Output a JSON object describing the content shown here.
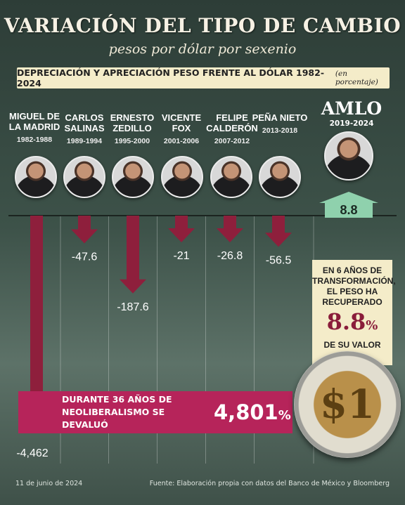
{
  "header": {
    "title": "VARIACIÓN DEL TIPO DE CAMBIO",
    "subtitle": "pesos por dólar por sexenio",
    "banner": "DEPRECIACIÓN Y APRECIACIÓN PESO FRENTE AL DÓLAR 1982-2024",
    "banner_unit": "(en porcentaje)"
  },
  "presidents": [
    {
      "name": "MIGUEL DE LA MADRID",
      "years": "1982-1988"
    },
    {
      "name": "CARLOS SALINAS",
      "years": "1989-1994"
    },
    {
      "name": "ERNESTO ZEDILLO",
      "years": "1995-2000"
    },
    {
      "name": "VICENTE FOX",
      "years": "2001-2006"
    },
    {
      "name": "FELIPE CALDERÓN",
      "years": "2007-2012"
    },
    {
      "name": "PEÑA NIETO",
      "years": "2013-2018"
    },
    {
      "name": "AMLO",
      "years": "2019-2024"
    }
  ],
  "chart_data": {
    "type": "bar",
    "categories": [
      "MIGUEL DE LA MADRID",
      "CARLOS SALINAS",
      "ERNESTO ZEDILLO",
      "VICENTE FOX",
      "FELIPE CALDERÓN",
      "PEÑA NIETO",
      "AMLO"
    ],
    "values": [
      -4462,
      -47.6,
      -187.6,
      -21,
      -26.8,
      -56.5,
      8.8
    ],
    "labels": [
      "-4,462",
      "-47.6",
      "-187.6",
      "-21",
      "-26.8",
      "-56.5",
      "8.8"
    ],
    "colors": {
      "negative": "#8e1f3c",
      "positive": "#8fd1ad"
    }
  },
  "side_box": {
    "line1": "EN 6 AÑOS DE TRANSFORMACIÓN,",
    "line2": "EL PESO HA RECUPERADO",
    "value": "8.8",
    "unit": "%",
    "line3": "DE SU VALOR"
  },
  "band": {
    "text": "DURANTE 36 AÑOS DE NEOLIBERALISMO SE DEVALUÓ",
    "value": "4,801",
    "unit": "%"
  },
  "coin": {
    "label": "$1"
  },
  "footer": {
    "date": "11 de junio de 2024",
    "source": "Fuente: Elaboración propia con datos del Banco de México y Bloomberg"
  },
  "colors": {
    "background": "#3d5249",
    "accent_red": "#8e1f3c",
    "band_magenta": "#b6245a",
    "cream": "#f4ecc9",
    "up_green": "#8fd1ad"
  }
}
